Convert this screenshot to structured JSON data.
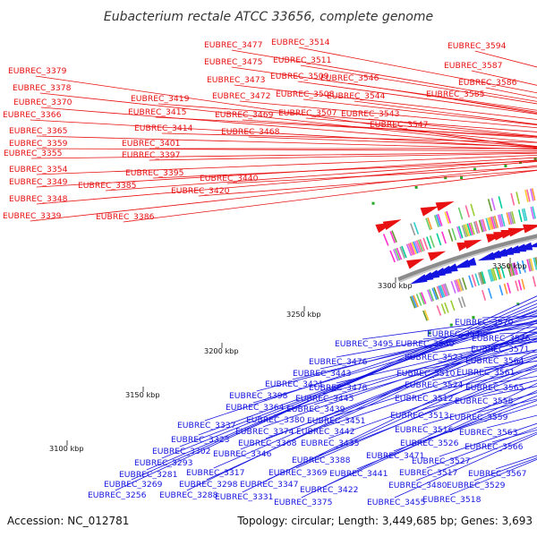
{
  "title": "Eubacterium rectale ATCC 33656, complete genome",
  "footer": {
    "accession": "Accession: NC_012781",
    "summary": "Topology: circular; Length: 3,449,685 bp; Genes: 3,693"
  },
  "colors": {
    "forward_strand": "#e81010",
    "reverse_strand": "#1414e0",
    "backbone": "#8c8c8c",
    "gc_mark": "#22aa22"
  },
  "ticks": [
    "3100 kbp",
    "3150 kbp",
    "3200 kbp",
    "3250 kbp",
    "3300 kbp",
    "3350 kbp"
  ],
  "forward_labels": [
    "EUBREC_3379",
    "EUBREC_3378",
    "EUBREC_3370",
    "EUBREC_3366",
    "EUBREC_3365",
    "EUBREC_3359",
    "EUBREC_3355",
    "EUBREC_3354",
    "EUBREC_3349",
    "EUBREC_3348",
    "EUBREC_3339",
    "EUBREC_3385",
    "EUBREC_3386",
    "EUBREC_3419",
    "EUBREC_3415",
    "EUBREC_3414",
    "EUBREC_3401",
    "EUBREC_3397",
    "EUBREC_3395",
    "EUBREC_3420",
    "EUBREC_3440",
    "EUBREC_3477",
    "EUBREC_3475",
    "EUBREC_3473",
    "EUBREC_3472",
    "EUBREC_3469",
    "EUBREC_3468",
    "EUBREC_3514",
    "EUBREC_3511",
    "EUBREC_3509",
    "EUBREC_3508",
    "EUBREC_3507",
    "EUBREC_3546",
    "EUBREC_3544",
    "EUBREC_3543",
    "EUBREC_3547",
    "EUBREC_3594",
    "EUBREC_3587",
    "EUBREC_3586",
    "EUBREC_3585"
  ],
  "reverse_labels": [
    "EUBREC_3570",
    "EUBREC_3548",
    "EUBREC_3576",
    "EUBREC_3495",
    "EUBREC_3540",
    "EUBREC_3571",
    "EUBREC_3476",
    "EUBREC_3523",
    "EUBREC_3564",
    "EUBREC_3443",
    "EUBREC_3510",
    "EUBREC_3561",
    "EUBREC_3421",
    "EUBREC_3478",
    "EUBREC_3524",
    "EUBREC_3565",
    "EUBREC_3398",
    "EUBREC_3445",
    "EUBREC_3512",
    "EUBREC_3558",
    "EUBREC_3364",
    "EUBREC_3439",
    "EUBREC_3513",
    "EUBREC_3559",
    "EUBREC_3380",
    "EUBREC_3451",
    "EUBREC_3516",
    "EUBREC_3563",
    "EUBREC_3337",
    "EUBREC_3374",
    "EUBREC_3442",
    "EUBREC_3526",
    "EUBREC_3566",
    "EUBREC_3323",
    "EUBREC_3368",
    "EUBREC_3435",
    "EUBREC_3471",
    "EUBREC_3527",
    "EUBREC_3302",
    "EUBREC_3346",
    "EUBREC_3388",
    "EUBREC_3517",
    "EUBREC_3567",
    "EUBREC_3293",
    "EUBREC_3317",
    "EUBREC_3369",
    "EUBREC_3441",
    "EUBREC_3480",
    "EUBREC_3529",
    "EUBREC_3281",
    "EUBREC_3298",
    "EUBREC_3347",
    "EUBREC_3422",
    "EUBREC_3269",
    "EUBREC_3288",
    "EUBREC_3331",
    "EUBREC_3375",
    "EUBREC_3455",
    "EUBREC_3518",
    "EUBREC_3256"
  ]
}
